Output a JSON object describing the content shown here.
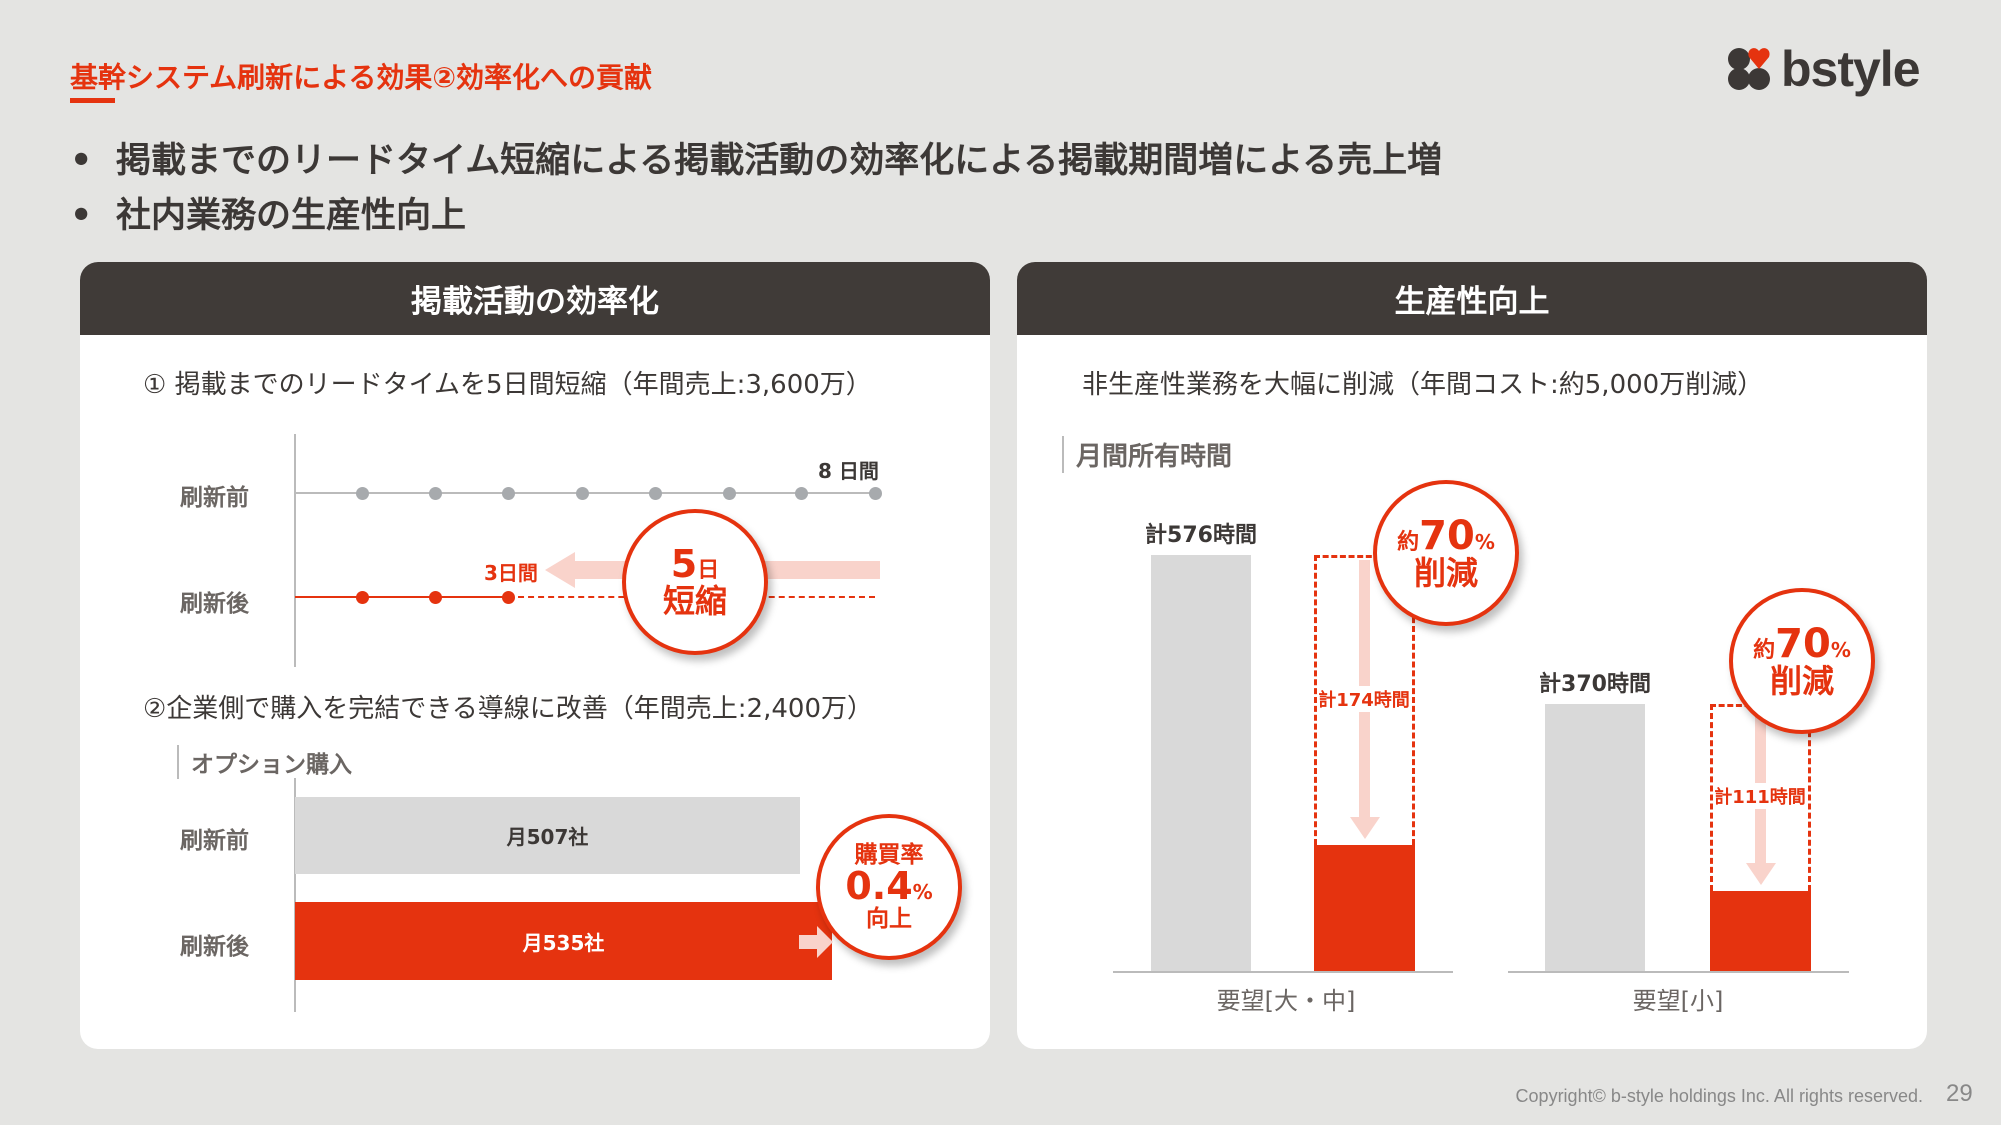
{
  "header": {
    "title": "基幹システム刷新による効果②効率化への貢献",
    "logo_text": "bstyle"
  },
  "bullets": [
    "掲載までのリードタイム短縮による掲載活動の効率化による掲載期間増による売上増",
    "社内業務の生産性向上"
  ],
  "left_panel": {
    "title": "掲載活動の効率化",
    "sub1": "① 掲載までのリードタイムを5日間短縮（年間売上:3,600万）",
    "before_label": "刷新前",
    "after_label": "刷新後",
    "before_days": "8 日間",
    "after_days": "3日間",
    "badge1_num": "5",
    "badge1_unit": "日",
    "badge1_text": "短縮",
    "sub2": "②企業側で購入を完結できる導線に改善（年間売上:2,400万）",
    "section": "オプション購入",
    "bar_before": "月507社",
    "bar_after": "月535社",
    "badge2_top": "購買率",
    "badge2_num": "0.4",
    "badge2_unit": "%",
    "badge2_bottom": "向上"
  },
  "right_panel": {
    "title": "生産性向上",
    "sub": "非生産性業務を大幅に削減（年間コスト:約5,000万削減）",
    "section": "月間所有時間",
    "badge_prefix": "約",
    "badge_num": "70",
    "badge_unit": "%",
    "badge_text": "削減"
  },
  "chart_data": {
    "type": "bar",
    "title": "月間所有時間",
    "ylabel": "時間",
    "categories": [
      "要望[大・中]",
      "要望[小]"
    ],
    "series": [
      {
        "name": "刷新前",
        "values": [
          576,
          370
        ],
        "labels": [
          "計576時間",
          "計370時間"
        ]
      },
      {
        "name": "刷新後",
        "values": [
          174,
          111
        ],
        "labels": [
          "計174時間",
          "計111時間"
        ]
      }
    ]
  },
  "footer": {
    "copyright": "Copyright© b-style holdings Inc. All rights reserved.",
    "page": "29"
  },
  "colors": {
    "accent": "#e5330f",
    "header": "#403b38",
    "bar_gray": "#d9d9d9",
    "pink": "#f9d3cb"
  }
}
